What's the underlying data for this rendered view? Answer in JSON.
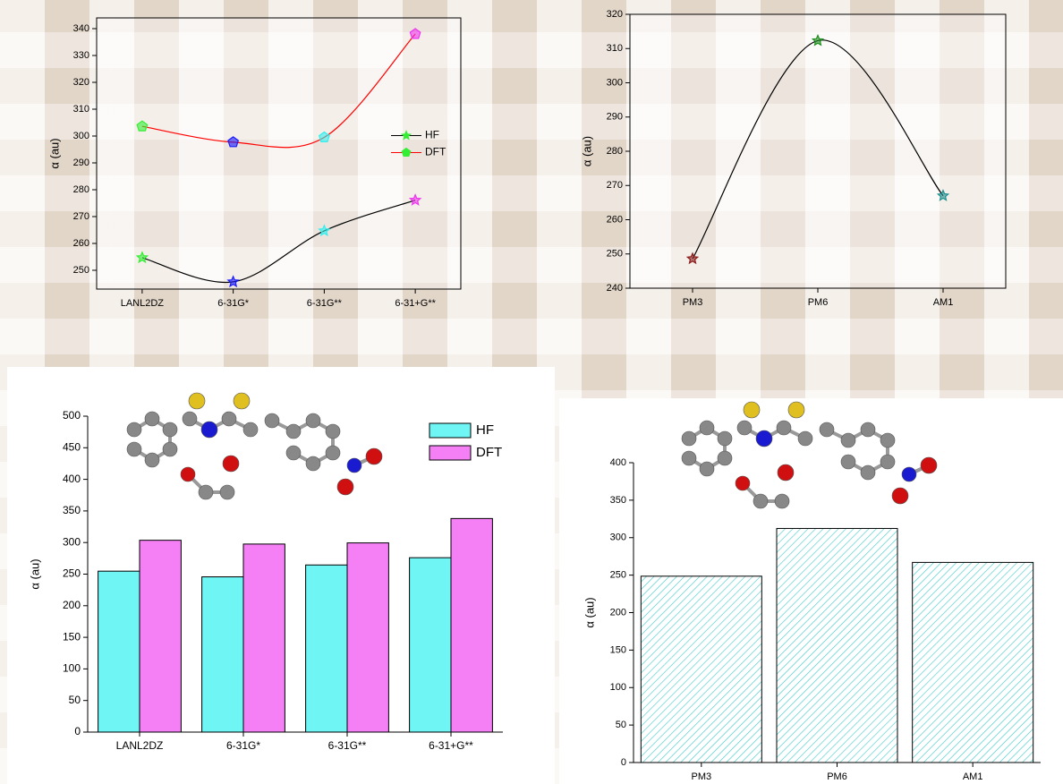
{
  "chart_data": [
    {
      "type": "line",
      "categories": [
        "LANL2DZ",
        "6-31G*",
        "6-31G**",
        "6-31+G**"
      ],
      "y_label": "α (au)",
      "ylim": [
        243,
        344
      ],
      "yticks": [
        250,
        260,
        270,
        280,
        290,
        300,
        310,
        320,
        330,
        340
      ],
      "frame": true,
      "legend": "right",
      "series": [
        {
          "name": "HF",
          "color": "#000000",
          "marker": "star",
          "marker_color": "#33ee33",
          "point_colors": [
            "#33ee33",
            "#1a1aff",
            "#33eeee",
            "#ee33ee"
          ],
          "values": [
            254.7,
            245.7,
            264.7,
            276.1
          ]
        },
        {
          "name": "DFT",
          "color": "#ff0000",
          "marker": "pentagon",
          "marker_color": "#33ee33",
          "point_colors": [
            "#33ee33",
            "#1a1aff",
            "#33eeee",
            "#ee33ee"
          ],
          "values": [
            303.6,
            297.7,
            299.5,
            338.0
          ]
        }
      ]
    },
    {
      "type": "line",
      "categories": [
        "PM3",
        "PM6",
        "AM1"
      ],
      "y_label": "α (au)",
      "ylim": [
        240,
        320
      ],
      "yticks": [
        240,
        250,
        260,
        270,
        280,
        290,
        300,
        310,
        320
      ],
      "frame": true,
      "series": [
        {
          "color": "#000000",
          "marker": "star",
          "point_colors": [
            "#8b1a1a",
            "#1f8f1f",
            "#1f8f8f"
          ],
          "values": [
            248.6,
            312.3,
            267.0
          ]
        }
      ]
    },
    {
      "type": "bar",
      "categories": [
        "LANL2DZ",
        "6-31G*",
        "6-31G**",
        "6-31+G**"
      ],
      "y_label": "α (au)",
      "ylim": [
        0,
        500
      ],
      "yticks": [
        0,
        50,
        100,
        150,
        200,
        250,
        300,
        350,
        400,
        450,
        500
      ],
      "legend": "top-right",
      "series": [
        {
          "name": "HF",
          "color": "#70f5f5",
          "values": [
            254.7,
            245.7,
            264.5,
            276.0
          ]
        },
        {
          "name": "DFT",
          "color": "#f57ff5",
          "values": [
            303.6,
            297.6,
            299.4,
            338.0
          ]
        }
      ]
    },
    {
      "type": "bar",
      "categories": [
        "PM3",
        "PM6",
        "AM1"
      ],
      "y_label": "α (au)",
      "ylim": [
        0,
        400
      ],
      "yticks": [
        0,
        50,
        100,
        150,
        200,
        250,
        300,
        350,
        400
      ],
      "hatch": true,
      "series": [
        {
          "color": "#3fc9c9",
          "values": [
            248.6,
            312.3,
            267.0
          ]
        }
      ]
    }
  ]
}
